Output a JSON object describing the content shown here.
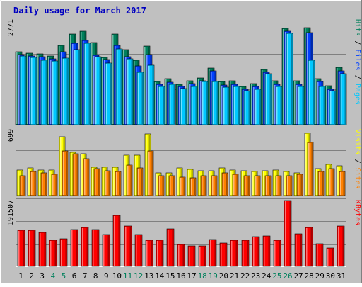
{
  "chart_data": {
    "type": "bar",
    "title": "Daily usage for March 2017",
    "categories": [
      "1",
      "2",
      "3",
      "4",
      "5",
      "6",
      "7",
      "8",
      "9",
      "10",
      "11",
      "12",
      "13",
      "14",
      "15",
      "16",
      "17",
      "18",
      "19",
      "20",
      "21",
      "22",
      "23",
      "24",
      "25",
      "26",
      "27",
      "28",
      "29",
      "30",
      "31"
    ],
    "weekend_days": [
      "4",
      "5",
      "11",
      "12",
      "18",
      "19",
      "25",
      "26"
    ],
    "grid": true,
    "panels": [
      {
        "id": "hits-files-pages",
        "max_label": "2771",
        "ylim": [
          0,
          2771
        ],
        "right_labels": [
          {
            "text": "Hits",
            "color": "#00805c"
          },
          {
            "text": "Files",
            "color": "#0040ff"
          },
          {
            "text": "Pages",
            "color": "#00c8ff"
          }
        ],
        "series": [
          {
            "name": "Hits",
            "color": "#00805c",
            "values": [
              1936,
              1889,
              1866,
              1819,
              2106,
              2397,
              2467,
              2164,
              1772,
              2397,
              1981,
              1701,
              2086,
              1141,
              1210,
              1071,
              1160,
              1243,
              1501,
              1141,
              1160,
              1014,
              1079,
              1464,
              1160,
              2541,
              1160,
              2558,
              1214,
              1030,
              1521
            ]
          },
          {
            "name": "Files",
            "color": "#0040ff",
            "values": [
              1845,
              1809,
              1796,
              1749,
              1924,
              2155,
              2223,
              1844,
              1717,
              2093,
              1801,
              1554,
              1847,
              1075,
              1128,
              1002,
              1092,
              1164,
              1420,
              1053,
              1066,
              945,
              1007,
              1387,
              1074,
              2480,
              1070,
              2437,
              1138,
              944,
              1416
            ]
          },
          {
            "name": "Pages",
            "color": "#00c8ff",
            "values": [
              1823,
              1779,
              1713,
              1676,
              1767,
              1987,
              2155,
              1799,
              1625,
              2000,
              1744,
              1392,
              1573,
              1014,
              1075,
              951,
              1014,
              1133,
              1139,
              986,
              1014,
              898,
              945,
              1348,
              1014,
              2414,
              1014,
              1712,
              1015,
              908,
              1348
            ]
          }
        ]
      },
      {
        "id": "visits-sites",
        "max_label": "699",
        "ylim": [
          0,
          699
        ],
        "right_labels": [
          {
            "text": "Visits",
            "color": "#ffff00"
          },
          {
            "text": "Sites",
            "color": "#ff8000"
          }
        ],
        "series": [
          {
            "name": "Visits",
            "color": "#ffff00",
            "values": [
              273,
              296,
              273,
              273,
              625,
              455,
              440,
              303,
              303,
              303,
              425,
              425,
              652,
              243,
              243,
              296,
              281,
              266,
              266,
              296,
              273,
              266,
              258,
              266,
              273,
              258,
              243,
              661,
              288,
              334,
              319
            ]
          },
          {
            "name": "Sites",
            "color": "#ff8000",
            "values": [
              212,
              258,
              243,
              228,
              470,
              440,
              394,
              288,
              266,
              258,
              326,
              296,
              470,
              212,
              212,
              197,
              190,
              212,
              212,
              243,
              228,
              212,
              212,
              212,
              212,
              212,
              228,
              561,
              258,
              288,
              258
            ]
          }
        ]
      },
      {
        "id": "kbytes",
        "max_label": "191507",
        "ylim": [
          0,
          191507
        ],
        "right_labels": [
          {
            "text": "KBytes",
            "color": "#ff0000"
          }
        ],
        "series": [
          {
            "name": "KBytes",
            "color": "#ff0000",
            "values": [
              105620,
              105620,
              99240,
              75580,
              80390,
              106220,
              113040,
              107520,
              91770,
              148140,
              118300,
              91770,
              77170,
              76580,
              108620,
              64820,
              58850,
              58850,
              79210,
              67180,
              75580,
              75580,
              86430,
              88410,
              77170,
              191850,
              95700,
              112950,
              66580,
              52700,
              117220
            ]
          }
        ]
      }
    ]
  }
}
